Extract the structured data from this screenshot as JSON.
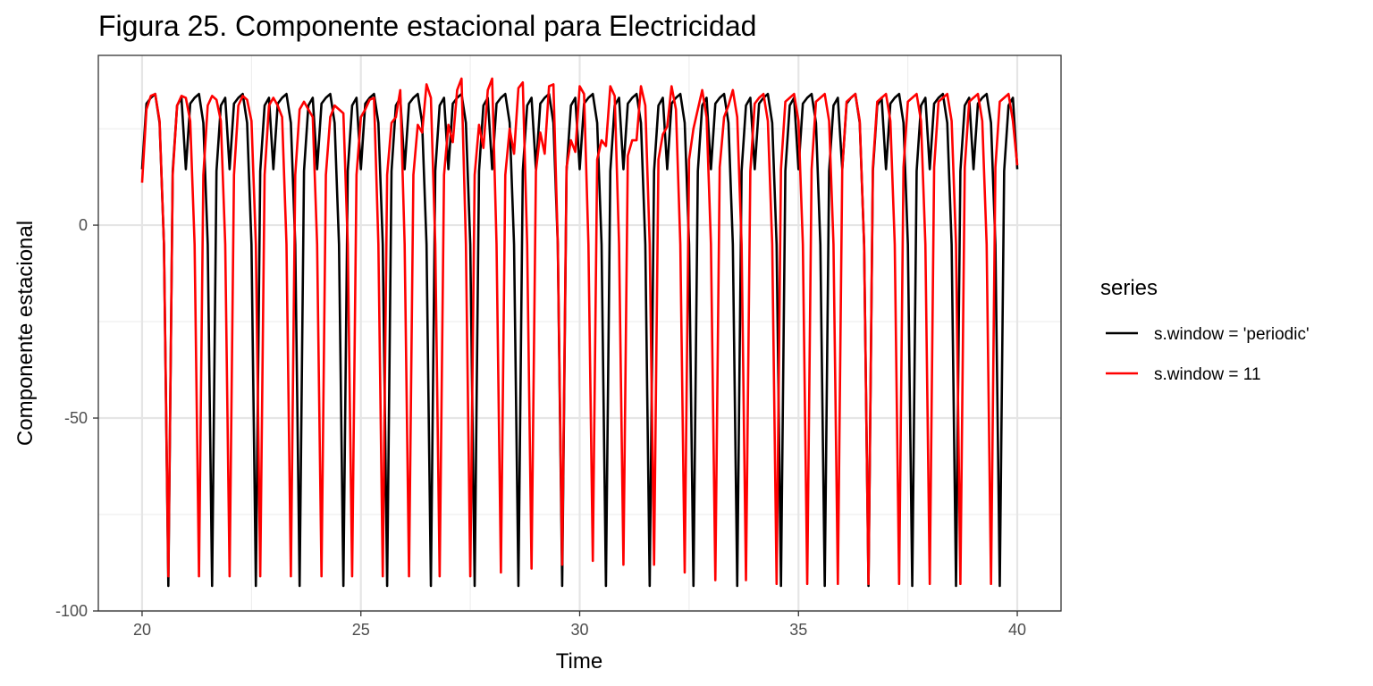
{
  "chart_data": {
    "type": "line",
    "title": "Figura 25. Componente estacional para Electricidad",
    "xlabel": "Time",
    "ylabel": "Componente estacional",
    "xlim": [
      19,
      41
    ],
    "ylim": [
      -100,
      44
    ],
    "x_ticks": [
      20,
      25,
      30,
      35,
      40
    ],
    "x_tick_labels": [
      "20",
      "25",
      "30",
      "35",
      "40"
    ],
    "y_ticks": [
      -100,
      -50,
      0
    ],
    "y_tick_labels": [
      "-100",
      "-50",
      "0"
    ],
    "grid": true,
    "legend": {
      "title": "series",
      "position": "right",
      "entries": [
        {
          "label": "s.window = 'periodic'",
          "color": "#000000"
        },
        {
          "label": "s.window = 11",
          "color": "#ff0000"
        }
      ]
    },
    "x_start": 20,
    "period": 10,
    "year_dt": 1,
    "series": [
      {
        "name": "s.window = 'periodic'",
        "color": "#000000",
        "repeat": 20,
        "pattern": [
          14.5,
          31.5,
          33.0,
          34.0,
          26.5,
          -5.0,
          -93.5,
          14.0,
          31.0,
          33.0
        ],
        "final": 14.5
      },
      {
        "name": "s.window = 11",
        "color": "#ff0000",
        "years": [
          [
            11.0,
            30.0,
            33.5,
            34.0,
            27.0,
            -5.0,
            -91.0,
            13.0,
            31.0,
            33.5
          ],
          [
            33.0,
            27.0,
            -5.0,
            -91.0,
            13.0,
            31.0,
            33.5,
            32.5,
            27.0,
            -5.0
          ],
          [
            -91.0,
            13.0,
            31.0,
            33.5,
            32.5,
            27.0,
            -5.0,
            -91.0,
            13.0,
            31.0
          ],
          [
            33.0,
            31.0,
            28.0,
            -5.0,
            -91.0,
            13.0,
            30.0,
            32.0,
            30.0,
            28.0
          ],
          [
            -5.0,
            -91.0,
            13.0,
            28.0,
            31.0,
            30.0,
            29.0,
            -5.0,
            -91.0,
            13.0
          ],
          [
            28.0,
            30.0,
            32.5,
            33.0,
            -5.0,
            -91.0,
            13.0,
            26.5,
            28.0,
            35.0
          ],
          [
            -5.0,
            -91.0,
            13.0,
            26.0,
            24.0,
            36.5,
            33.0,
            -5.0,
            -91.0,
            13.0
          ],
          [
            26.0,
            21.5,
            35.0,
            38.0,
            -5.0,
            -91.0,
            13.0,
            26.0,
            20.0,
            35.0
          ],
          [
            38.0,
            -5.0,
            -90.0,
            13.0,
            25.0,
            18.5,
            35.5,
            37.0,
            -5.0,
            -89.0
          ],
          [
            14.0,
            24.0,
            18.5,
            36.0,
            36.5,
            -5.0,
            -88.0,
            15.0,
            22.0,
            19.0
          ],
          [
            36.0,
            34.0,
            -5.0,
            -87.0,
            17.0,
            22.0,
            20.5,
            36.0,
            33.5,
            -5.0
          ],
          [
            -88.0,
            18.0,
            22.0,
            22.0,
            36.0,
            31.0,
            -5.0,
            -88.0,
            17.0,
            23.5
          ],
          [
            25.5,
            36.0,
            30.0,
            -5.0,
            -90.0,
            17.0,
            25.0,
            30.0,
            35.0,
            28.0
          ],
          [
            -5.0,
            -92.0,
            15.0,
            28.0,
            31.0,
            35.0,
            28.0,
            -5.0,
            -92.0,
            14.0
          ],
          [
            31.5,
            33.0,
            34.0,
            27.0,
            -5.0,
            -93.0,
            14.5,
            32.0,
            33.0,
            34.0
          ],
          [
            27.0,
            -5.0,
            -93.0,
            14.5,
            32.0,
            33.0,
            34.0,
            27.0,
            -5.0,
            -93.0
          ],
          [
            14.5,
            32.0,
            33.0,
            34.0,
            27.0,
            -5.0,
            -93.0,
            15.0,
            32.0,
            33.0
          ],
          [
            34.0,
            27.0,
            -5.0,
            -93.0,
            15.0,
            32.0,
            33.0,
            34.0,
            27.0,
            -5.0
          ],
          [
            -93.0,
            15.0,
            32.0,
            33.0,
            34.0,
            27.0,
            -5.0,
            -93.0,
            15.0,
            32.0
          ],
          [
            33.0,
            34.0,
            27.0,
            -5.0,
            -93.0,
            15.0,
            32.0,
            33.0,
            34.0,
            27.0
          ]
        ],
        "final": 15.5
      }
    ]
  }
}
